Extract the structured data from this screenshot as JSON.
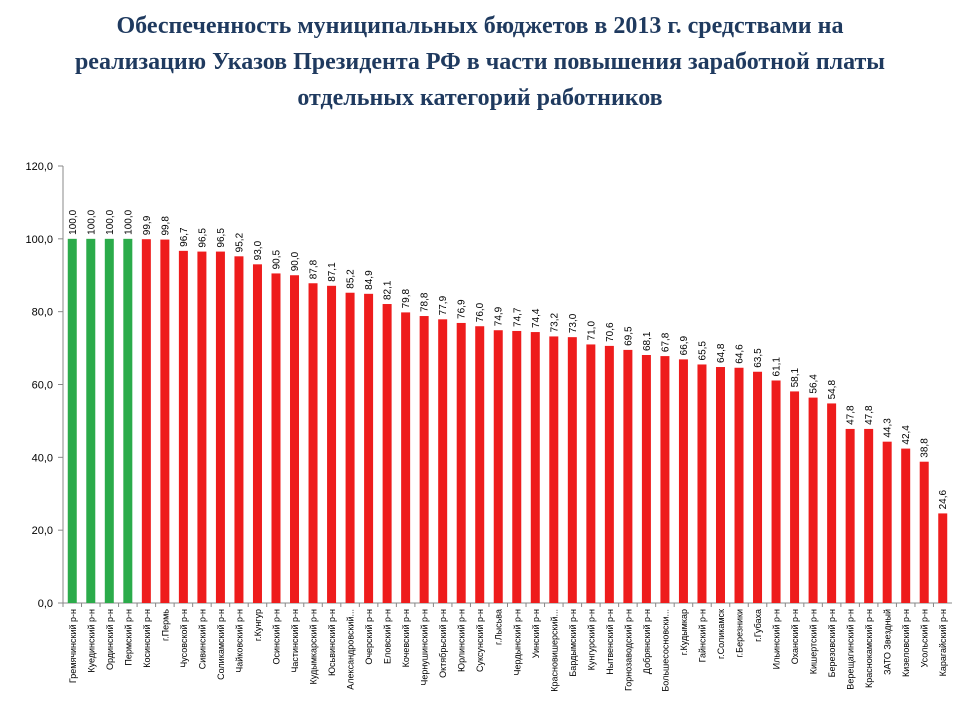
{
  "chart_data": {
    "type": "bar",
    "title": "Обеспеченность муниципальных бюджетов в 2013 г. средствами на реализацию Указов Президента РФ в части повышения заработной платы отдельных категорий работников",
    "categories": [
      "Гремячинский р-н",
      "Куединский р-н",
      "Ординский р-н",
      "Пермский р-н",
      "Косинский р-н",
      "г.Пермь",
      "Чусовской р-н",
      "Сивинский р-н",
      "Соликамский р-н",
      "Чайковский р-н",
      "г.Кунгур",
      "Осинский р-н",
      "Частинский р-н",
      "Кудымкарский р-н",
      "Юсьвинский р-н",
      "Александровский...",
      "Очерский р-н",
      "Еловский р-н",
      "Кочевский р-н",
      "Чернушинский р-н",
      "Октябрьский р-н",
      "Юрлинский р-н",
      "Суксунский р-н",
      "г.Лысьва",
      "Чердынский р-н",
      "Уинский р-н",
      "Красновишерский...",
      "Бардымский р-н",
      "Кунгурский р-н",
      "Нытвенский р-н",
      "Горнозаводский р-н",
      "Добрянский р-н",
      "Большесосновски...",
      "г.Кудымкар",
      "Гайнский р-н",
      "г.Соликамск",
      "г.Березники",
      "г.Губаха",
      "Ильинский р-н",
      "Оханский р-н",
      "Кишертский р-н",
      "Березовский р-н",
      "Верещагинский р-н",
      "Краснокамский р-н",
      "ЗАТО Звездный",
      "Кизеловский р-н",
      "Усольский р-н",
      "Карагайский р-н"
    ],
    "values": [
      100,
      100,
      100,
      100,
      99.9,
      99.8,
      96.7,
      96.5,
      96.5,
      95.2,
      93,
      90.5,
      90,
      87.8,
      87.1,
      85.2,
      84.9,
      82.1,
      79.8,
      78.8,
      77.9,
      76.9,
      76,
      74.9,
      74.7,
      74.4,
      73.2,
      73,
      71,
      70.6,
      69.5,
      68.1,
      67.8,
      66.9,
      65.5,
      64.8,
      64.6,
      63.5,
      61.1,
      58.1,
      56.4,
      54.8,
      47.8,
      47.8,
      44.3,
      42.4,
      38.8,
      24.6
    ],
    "value_labels": [
      "100,0",
      "100,0",
      "100,0",
      "100,0",
      "99,9",
      "99,8",
      "96,7",
      "96,5",
      "96,5",
      "95,2",
      "93,0",
      "90,5",
      "90,0",
      "87,8",
      "87,1",
      "85,2",
      "84,9",
      "82,1",
      "79,8",
      "78,8",
      "77,9",
      "76,9",
      "76,0",
      "74,9",
      "74,7",
      "74,4",
      "73,2",
      "73,0",
      "71,0",
      "70,6",
      "69,5",
      "68,1",
      "67,8",
      "66,9",
      "65,5",
      "64,8",
      "64,6",
      "63,5",
      "61,1",
      "58,1",
      "56,4",
      "54,8",
      "47,8",
      "47,8",
      "44,3",
      "42,4",
      "38,8",
      "24,6"
    ],
    "colors": [
      "#2bab4a",
      "#2bab4a",
      "#2bab4a",
      "#2bab4a",
      "#ee1c1c",
      "#ee1c1c",
      "#ee1c1c",
      "#ee1c1c",
      "#ee1c1c",
      "#ee1c1c",
      "#ee1c1c",
      "#ee1c1c",
      "#ee1c1c",
      "#ee1c1c",
      "#ee1c1c",
      "#ee1c1c",
      "#ee1c1c",
      "#ee1c1c",
      "#ee1c1c",
      "#ee1c1c",
      "#ee1c1c",
      "#ee1c1c",
      "#ee1c1c",
      "#ee1c1c",
      "#ee1c1c",
      "#ee1c1c",
      "#ee1c1c",
      "#ee1c1c",
      "#ee1c1c",
      "#ee1c1c",
      "#ee1c1c",
      "#ee1c1c",
      "#ee1c1c",
      "#ee1c1c",
      "#ee1c1c",
      "#ee1c1c",
      "#ee1c1c",
      "#ee1c1c",
      "#ee1c1c",
      "#ee1c1c",
      "#ee1c1c",
      "#ee1c1c",
      "#ee1c1c",
      "#ee1c1c",
      "#ee1c1c",
      "#ee1c1c",
      "#ee1c1c",
      "#ee1c1c"
    ],
    "ylim": [
      0,
      120
    ],
    "yticks": [
      {
        "value": 0,
        "label": "0,0"
      },
      {
        "value": 20,
        "label": "20,0"
      },
      {
        "value": 40,
        "label": "40,0"
      },
      {
        "value": 60,
        "label": "60,0"
      },
      {
        "value": 80,
        "label": "80,0"
      },
      {
        "value": 100,
        "label": "100,0"
      },
      {
        "value": 120,
        "label": "120,0"
      }
    ],
    "grid": false
  }
}
